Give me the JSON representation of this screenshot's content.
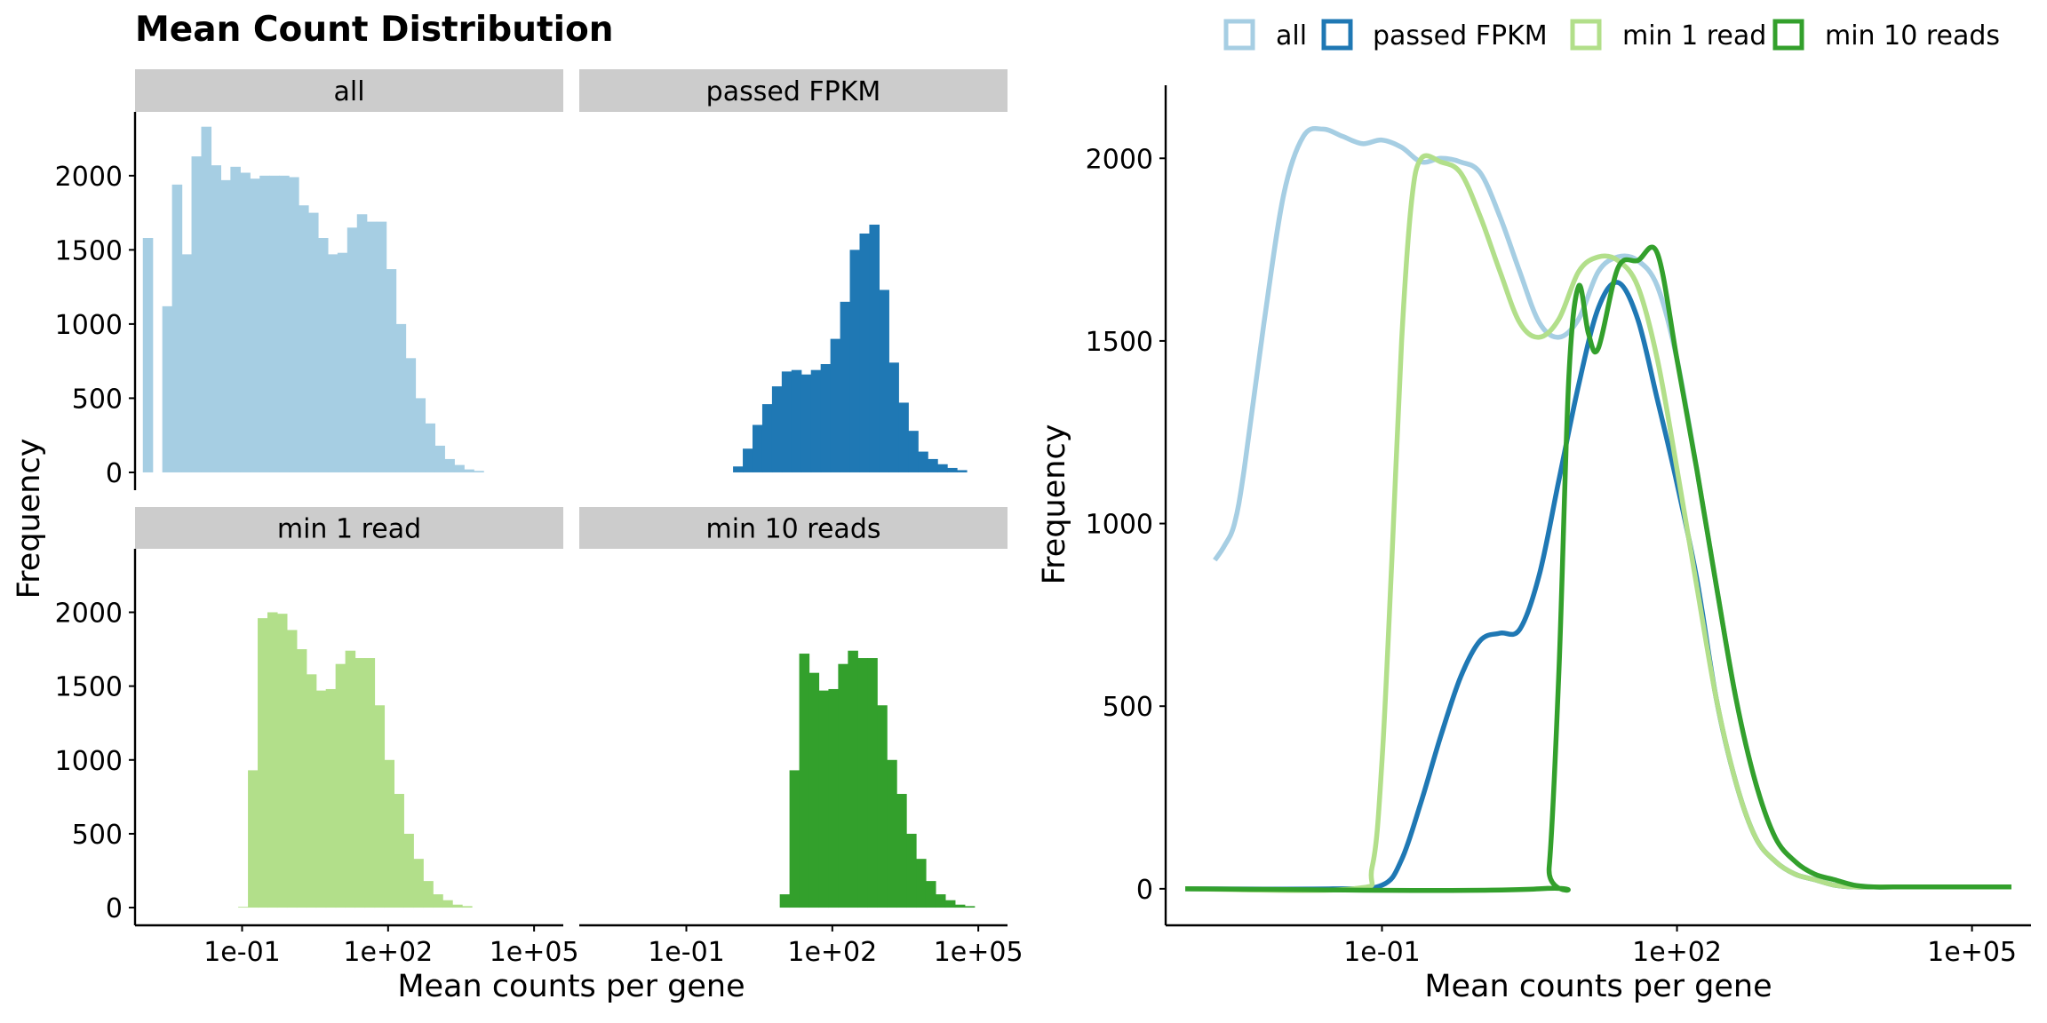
{
  "figure": {
    "title": "Mean Count Distribution",
    "colors": {
      "all": "#a6cee3",
      "passed FPKM": "#1f78b4",
      "min 1 read": "#b2df8a",
      "min 10 reads": "#33a02c",
      "strip_bg": "#cccccc"
    }
  },
  "chart_data": [
    {
      "type": "bar",
      "subtype": "faceted-histogram",
      "xlabel": "Mean counts per gene",
      "ylabel": "Frequency",
      "x_scale": "log10",
      "x_ticks": [
        "1e-01",
        "1e+02",
        "1e+05"
      ],
      "y_ticks": [
        0,
        500,
        1000,
        1500,
        2000
      ],
      "ylim": [
        -120,
        2430
      ],
      "bin_width_log10": 0.2,
      "facets": [
        {
          "name": "all",
          "bins": [
            {
              "log10_start": -3.04,
              "count": 1580
            },
            {
              "log10_start": -2.64,
              "count": 1120
            },
            {
              "log10_start": -2.44,
              "count": 1940
            },
            {
              "log10_start": -2.24,
              "count": 1470
            },
            {
              "log10_start": -2.04,
              "count": 2130
            },
            {
              "log10_start": -1.84,
              "count": 2330
            },
            {
              "log10_start": -1.64,
              "count": 2070
            },
            {
              "log10_start": -1.44,
              "count": 1970
            },
            {
              "log10_start": -1.24,
              "count": 2060
            },
            {
              "log10_start": -1.04,
              "count": 2020
            },
            {
              "log10_start": -0.84,
              "count": 1980
            },
            {
              "log10_start": -0.64,
              "count": 2000
            },
            {
              "log10_start": -0.44,
              "count": 2000
            },
            {
              "log10_start": -0.24,
              "count": 2000
            },
            {
              "log10_start": -0.04,
              "count": 1990
            },
            {
              "log10_start": 0.16,
              "count": 1800
            },
            {
              "log10_start": 0.36,
              "count": 1750
            },
            {
              "log10_start": 0.56,
              "count": 1580
            },
            {
              "log10_start": 0.76,
              "count": 1470
            },
            {
              "log10_start": 0.96,
              "count": 1480
            },
            {
              "log10_start": 1.16,
              "count": 1650
            },
            {
              "log10_start": 1.36,
              "count": 1740
            },
            {
              "log10_start": 1.56,
              "count": 1690
            },
            {
              "log10_start": 1.76,
              "count": 1690
            },
            {
              "log10_start": 1.96,
              "count": 1370
            },
            {
              "log10_start": 2.16,
              "count": 1000
            },
            {
              "log10_start": 2.36,
              "count": 770
            },
            {
              "log10_start": 2.56,
              "count": 500
            },
            {
              "log10_start": 2.76,
              "count": 330
            },
            {
              "log10_start": 2.96,
              "count": 180
            },
            {
              "log10_start": 3.16,
              "count": 90
            },
            {
              "log10_start": 3.36,
              "count": 50
            },
            {
              "log10_start": 3.56,
              "count": 20
            },
            {
              "log10_start": 3.76,
              "count": 10
            }
          ]
        },
        {
          "name": "passed FPKM",
          "bins": [
            {
              "log10_start": -0.04,
              "count": 40
            },
            {
              "log10_start": 0.16,
              "count": 160
            },
            {
              "log10_start": 0.36,
              "count": 320
            },
            {
              "log10_start": 0.56,
              "count": 460
            },
            {
              "log10_start": 0.76,
              "count": 580
            },
            {
              "log10_start": 0.96,
              "count": 680
            },
            {
              "log10_start": 1.16,
              "count": 690
            },
            {
              "log10_start": 1.36,
              "count": 660
            },
            {
              "log10_start": 1.56,
              "count": 690
            },
            {
              "log10_start": 1.76,
              "count": 730
            },
            {
              "log10_start": 1.96,
              "count": 900
            },
            {
              "log10_start": 2.16,
              "count": 1150
            },
            {
              "log10_start": 2.36,
              "count": 1500
            },
            {
              "log10_start": 2.56,
              "count": 1610
            },
            {
              "log10_start": 2.76,
              "count": 1670
            },
            {
              "log10_start": 2.96,
              "count": 1230
            },
            {
              "log10_start": 3.16,
              "count": 740
            },
            {
              "log10_start": 3.36,
              "count": 470
            },
            {
              "log10_start": 3.56,
              "count": 280
            },
            {
              "log10_start": 3.76,
              "count": 140
            },
            {
              "log10_start": 3.96,
              "count": 90
            },
            {
              "log10_start": 4.16,
              "count": 55
            },
            {
              "log10_start": 4.36,
              "count": 30
            },
            {
              "log10_start": 4.56,
              "count": 15
            }
          ]
        },
        {
          "name": "min 1 read",
          "bins": [
            {
              "log10_start": -1.08,
              "count": 5
            },
            {
              "log10_start": -0.88,
              "count": 930
            },
            {
              "log10_start": -0.68,
              "count": 1960
            },
            {
              "log10_start": -0.48,
              "count": 2000
            },
            {
              "log10_start": -0.28,
              "count": 1990
            },
            {
              "log10_start": -0.08,
              "count": 1880
            },
            {
              "log10_start": 0.12,
              "count": 1750
            },
            {
              "log10_start": 0.32,
              "count": 1580
            },
            {
              "log10_start": 0.52,
              "count": 1470
            },
            {
              "log10_start": 0.72,
              "count": 1480
            },
            {
              "log10_start": 0.92,
              "count": 1650
            },
            {
              "log10_start": 1.12,
              "count": 1740
            },
            {
              "log10_start": 1.32,
              "count": 1690
            },
            {
              "log10_start": 1.52,
              "count": 1690
            },
            {
              "log10_start": 1.72,
              "count": 1370
            },
            {
              "log10_start": 1.92,
              "count": 1000
            },
            {
              "log10_start": 2.12,
              "count": 770
            },
            {
              "log10_start": 2.32,
              "count": 500
            },
            {
              "log10_start": 2.52,
              "count": 330
            },
            {
              "log10_start": 2.72,
              "count": 180
            },
            {
              "log10_start": 2.92,
              "count": 90
            },
            {
              "log10_start": 3.12,
              "count": 50
            },
            {
              "log10_start": 3.32,
              "count": 20
            },
            {
              "log10_start": 3.52,
              "count": 10
            }
          ]
        },
        {
          "name": "min 10 reads",
          "bins": [
            {
              "log10_start": 0.92,
              "count": 90
            },
            {
              "log10_start": 1.12,
              "count": 930
            },
            {
              "log10_start": 1.32,
              "count": 1720
            },
            {
              "log10_start": 1.52,
              "count": 1590
            },
            {
              "log10_start": 1.72,
              "count": 1470
            },
            {
              "log10_start": 1.92,
              "count": 1480
            },
            {
              "log10_start": 2.12,
              "count": 1650
            },
            {
              "log10_start": 2.32,
              "count": 1740
            },
            {
              "log10_start": 2.52,
              "count": 1690
            },
            {
              "log10_start": 2.72,
              "count": 1690
            },
            {
              "log10_start": 2.92,
              "count": 1370
            },
            {
              "log10_start": 3.12,
              "count": 1000
            },
            {
              "log10_start": 3.32,
              "count": 770
            },
            {
              "log10_start": 3.52,
              "count": 500
            },
            {
              "log10_start": 3.72,
              "count": 330
            },
            {
              "log10_start": 3.92,
              "count": 180
            },
            {
              "log10_start": 4.12,
              "count": 90
            },
            {
              "log10_start": 4.32,
              "count": 50
            },
            {
              "log10_start": 4.52,
              "count": 20
            },
            {
              "log10_start": 4.72,
              "count": 10
            }
          ]
        }
      ]
    },
    {
      "type": "line",
      "subtype": "frequency-polygon",
      "xlabel": "Mean counts per gene",
      "ylabel": "Frequency",
      "x_scale": "log10",
      "x_ticks": [
        "1e-01",
        "1e+02",
        "1e+05"
      ],
      "y_ticks": [
        0,
        500,
        1000,
        1500,
        2000
      ],
      "ylim": [
        -100,
        2200
      ],
      "legend": "top",
      "series": [
        {
          "name": "all",
          "x_log10": [
            -2.7,
            -2.6,
            -2.5,
            -2.4,
            -2.2,
            -2.0,
            -1.8,
            -1.6,
            -1.4,
            -1.2,
            -1.0,
            -0.8,
            -0.6,
            -0.4,
            -0.2,
            0.0,
            0.2,
            0.4,
            0.6,
            0.8,
            1.0,
            1.2,
            1.4,
            1.6,
            1.8,
            2.0,
            2.2,
            2.4,
            2.6,
            2.8,
            3.0,
            3.2,
            3.4,
            3.6,
            3.8,
            4.0,
            4.2,
            4.4,
            4.6,
            4.8,
            5.0,
            5.2,
            5.4
          ],
          "y": [
            900,
            940,
            1000,
            1150,
            1550,
            1900,
            2060,
            2080,
            2060,
            2040,
            2050,
            2030,
            1990,
            2000,
            1990,
            1960,
            1840,
            1690,
            1550,
            1510,
            1560,
            1690,
            1730,
            1720,
            1650,
            1450,
            1150,
            830,
            520,
            290,
            140,
            75,
            40,
            25,
            10,
            5,
            5,
            5,
            5,
            5,
            5,
            5,
            5
          ]
        },
        {
          "name": "passed FPKM",
          "x_log10": [
            -3.0,
            -1.5,
            -1.0,
            -0.8,
            -0.6,
            -0.4,
            -0.2,
            0.0,
            0.2,
            0.4,
            0.6,
            0.8,
            1.0,
            1.2,
            1.4,
            1.6,
            1.8,
            2.0,
            2.2,
            2.4,
            2.6,
            2.8,
            3.0,
            3.2,
            3.4,
            3.6,
            3.8,
            4.0,
            4.2,
            4.4,
            4.6,
            4.8,
            5.0,
            5.2,
            5.4
          ],
          "y": [
            0,
            0,
            10,
            80,
            240,
            420,
            580,
            680,
            700,
            710,
            860,
            1120,
            1380,
            1590,
            1660,
            1560,
            1340,
            1110,
            850,
            520,
            290,
            140,
            75,
            40,
            25,
            10,
            5,
            5,
            5,
            5,
            5,
            5,
            5,
            5,
            5
          ]
        },
        {
          "name": "min 1 read",
          "x_log10": [
            -3.0,
            -1.3,
            -1.1,
            -1.0,
            -0.9,
            -0.8,
            -0.7,
            -0.6,
            -0.4,
            -0.2,
            0.0,
            0.2,
            0.4,
            0.6,
            0.8,
            1.0,
            1.2,
            1.4,
            1.6,
            1.8,
            2.0,
            2.2,
            2.4,
            2.6,
            2.8,
            3.0,
            3.2,
            3.4,
            3.6,
            3.8,
            4.0,
            4.2,
            4.4,
            4.6,
            4.8,
            5.0,
            5.2,
            5.4
          ],
          "y": [
            0,
            0,
            60,
            350,
            900,
            1500,
            1880,
            2000,
            1990,
            1960,
            1840,
            1690,
            1550,
            1510,
            1560,
            1690,
            1730,
            1720,
            1650,
            1450,
            1150,
            830,
            520,
            290,
            140,
            75,
            40,
            25,
            10,
            5,
            5,
            5,
            5,
            5,
            5,
            5,
            5,
            5
          ]
        },
        {
          "name": "min 10 reads",
          "x_log10": [
            -3.0,
            0.6,
            0.7,
            0.8,
            0.9,
            1.0,
            1.1,
            1.2,
            1.4,
            1.6,
            1.8,
            2.0,
            2.2,
            2.4,
            2.6,
            2.8,
            3.0,
            3.2,
            3.4,
            3.6,
            3.8,
            4.0,
            4.2,
            4.4,
            4.6,
            4.8,
            5.0,
            5.2,
            5.4
          ],
          "y": [
            0,
            0,
            60,
            600,
            1400,
            1650,
            1520,
            1480,
            1700,
            1720,
            1740,
            1450,
            1150,
            830,
            520,
            290,
            140,
            75,
            40,
            25,
            10,
            5,
            5,
            5,
            5,
            5,
            5,
            5,
            5
          ]
        }
      ]
    }
  ]
}
